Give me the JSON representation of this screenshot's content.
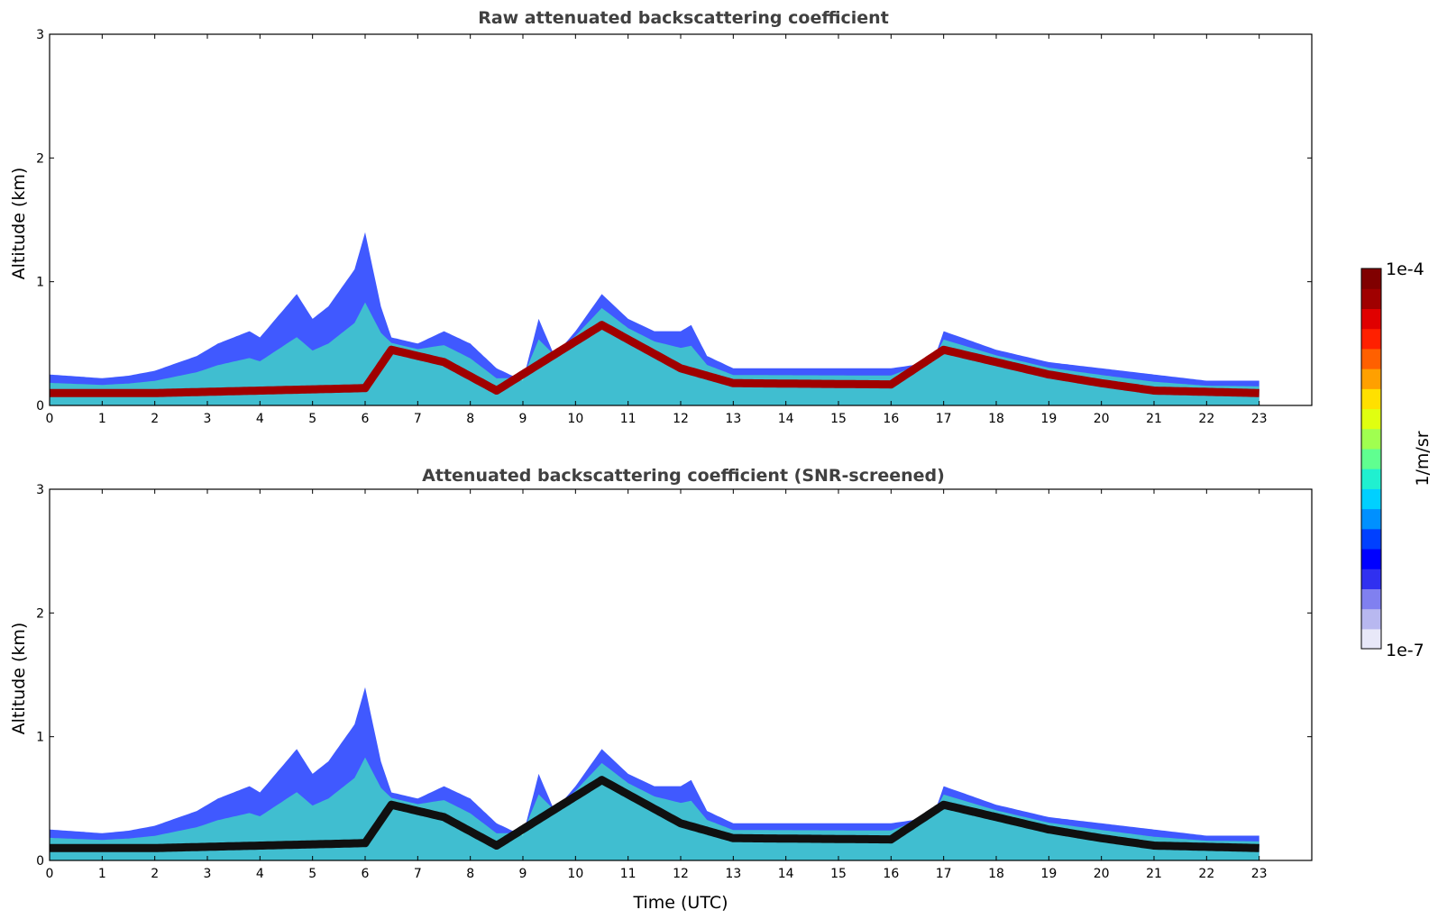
{
  "chart_data": [
    {
      "type": "heatmap",
      "title": "Raw attenuated backscattering coefficient",
      "xlabel": "",
      "ylabel": "Altitude (km)",
      "xlim": [
        0,
        24
      ],
      "ylim": [
        0,
        3
      ],
      "xticks": [
        0,
        1,
        2,
        3,
        4,
        5,
        6,
        7,
        8,
        9,
        10,
        11,
        12,
        13,
        14,
        15,
        16,
        17,
        18,
        19,
        20,
        21,
        22,
        23
      ],
      "yticks": [
        0,
        1,
        2,
        3
      ],
      "layer_top_km": [
        [
          0,
          0.25
        ],
        [
          1,
          0.22
        ],
        [
          1.5,
          0.24
        ],
        [
          2,
          0.28
        ],
        [
          2.8,
          0.4
        ],
        [
          3.2,
          0.5
        ],
        [
          3.8,
          0.6
        ],
        [
          4,
          0.55
        ],
        [
          4.7,
          0.9
        ],
        [
          5,
          0.7
        ],
        [
          5.3,
          0.8
        ],
        [
          5.8,
          1.1
        ],
        [
          6,
          1.4
        ],
        [
          6.3,
          0.8
        ],
        [
          6.5,
          0.55
        ],
        [
          7,
          0.5
        ],
        [
          7.5,
          0.6
        ],
        [
          8,
          0.5
        ],
        [
          8.5,
          0.3
        ],
        [
          9,
          0.2
        ],
        [
          9.3,
          0.7
        ],
        [
          9.6,
          0.4
        ],
        [
          10,
          0.6
        ],
        [
          10.5,
          0.9
        ],
        [
          11,
          0.7
        ],
        [
          11.5,
          0.6
        ],
        [
          12,
          0.6
        ],
        [
          12.2,
          0.65
        ],
        [
          12.5,
          0.4
        ],
        [
          13,
          0.3
        ],
        [
          14,
          0.3
        ],
        [
          15,
          0.3
        ],
        [
          16,
          0.3
        ],
        [
          16.8,
          0.35
        ],
        [
          17,
          0.6
        ],
        [
          18,
          0.45
        ],
        [
          19,
          0.35
        ],
        [
          20,
          0.3
        ],
        [
          21,
          0.25
        ],
        [
          22,
          0.2
        ],
        [
          23,
          0.2
        ]
      ],
      "dense_layer_km": [
        [
          0,
          0.1
        ],
        [
          2,
          0.1
        ],
        [
          4,
          0.12
        ],
        [
          6,
          0.14
        ],
        [
          6.5,
          0.45
        ],
        [
          7.5,
          0.35
        ],
        [
          8.5,
          0.12
        ],
        [
          10.5,
          0.65
        ],
        [
          12,
          0.3
        ],
        [
          13,
          0.18
        ],
        [
          16,
          0.17
        ],
        [
          17,
          0.45
        ],
        [
          18,
          0.35
        ],
        [
          19,
          0.25
        ],
        [
          20,
          0.18
        ],
        [
          21,
          0.12
        ],
        [
          23,
          0.1
        ]
      ],
      "color_note": ""
    },
    {
      "type": "heatmap",
      "title": "Attenuated backscattering coefficient (SNR-screened)",
      "xlabel": "Time (UTC)",
      "ylabel": "Altitude (km)",
      "xlim": [
        0,
        24
      ],
      "ylim": [
        0,
        3
      ],
      "xticks": [
        0,
        1,
        2,
        3,
        4,
        5,
        6,
        7,
        8,
        9,
        10,
        11,
        12,
        13,
        14,
        15,
        16,
        17,
        18,
        19,
        20,
        21,
        22,
        23
      ],
      "yticks": [
        0,
        1,
        2,
        3
      ],
      "layer_top_km": [
        [
          0,
          0.25
        ],
        [
          1,
          0.22
        ],
        [
          1.5,
          0.24
        ],
        [
          2,
          0.28
        ],
        [
          2.8,
          0.4
        ],
        [
          3.2,
          0.5
        ],
        [
          3.8,
          0.6
        ],
        [
          4,
          0.55
        ],
        [
          4.7,
          0.9
        ],
        [
          5,
          0.7
        ],
        [
          5.3,
          0.8
        ],
        [
          5.8,
          1.1
        ],
        [
          6,
          1.4
        ],
        [
          6.3,
          0.8
        ],
        [
          6.5,
          0.55
        ],
        [
          7,
          0.5
        ],
        [
          7.5,
          0.6
        ],
        [
          8,
          0.5
        ],
        [
          8.5,
          0.3
        ],
        [
          9,
          0.2
        ],
        [
          9.3,
          0.7
        ],
        [
          9.6,
          0.4
        ],
        [
          10,
          0.6
        ],
        [
          10.5,
          0.9
        ],
        [
          11,
          0.7
        ],
        [
          11.5,
          0.6
        ],
        [
          12,
          0.6
        ],
        [
          12.2,
          0.65
        ],
        [
          12.5,
          0.4
        ],
        [
          13,
          0.3
        ],
        [
          14,
          0.3
        ],
        [
          15,
          0.3
        ],
        [
          16,
          0.3
        ],
        [
          16.8,
          0.35
        ],
        [
          17,
          0.6
        ],
        [
          18,
          0.45
        ],
        [
          19,
          0.35
        ],
        [
          20,
          0.3
        ],
        [
          21,
          0.25
        ],
        [
          22,
          0.2
        ],
        [
          23,
          0.2
        ]
      ],
      "dense_layer_km": [
        [
          0,
          0.1
        ],
        [
          2,
          0.1
        ],
        [
          4,
          0.12
        ],
        [
          6,
          0.14
        ],
        [
          6.5,
          0.45
        ],
        [
          7.5,
          0.35
        ],
        [
          8.5,
          0.12
        ],
        [
          10.5,
          0.65
        ],
        [
          12,
          0.3
        ],
        [
          13,
          0.18
        ],
        [
          16,
          0.17
        ],
        [
          17,
          0.45
        ],
        [
          18,
          0.35
        ],
        [
          19,
          0.25
        ],
        [
          20,
          0.18
        ],
        [
          21,
          0.12
        ],
        [
          23,
          0.1
        ]
      ],
      "color_note": ""
    }
  ],
  "colorbar": {
    "max_label": "1e-4",
    "min_label": "1e-7",
    "unit_label": "1/m/sr",
    "colors": [
      "#e8e8f8",
      "#b8b8f0",
      "#8080f0",
      "#3030f0",
      "#0000ff",
      "#0040ff",
      "#0090ff",
      "#00d0ff",
      "#20f0d0",
      "#60ff90",
      "#a0ff50",
      "#e0ff10",
      "#ffe000",
      "#ffa000",
      "#ff6000",
      "#ff2000",
      "#e00000",
      "#a00000",
      "#800000"
    ]
  }
}
